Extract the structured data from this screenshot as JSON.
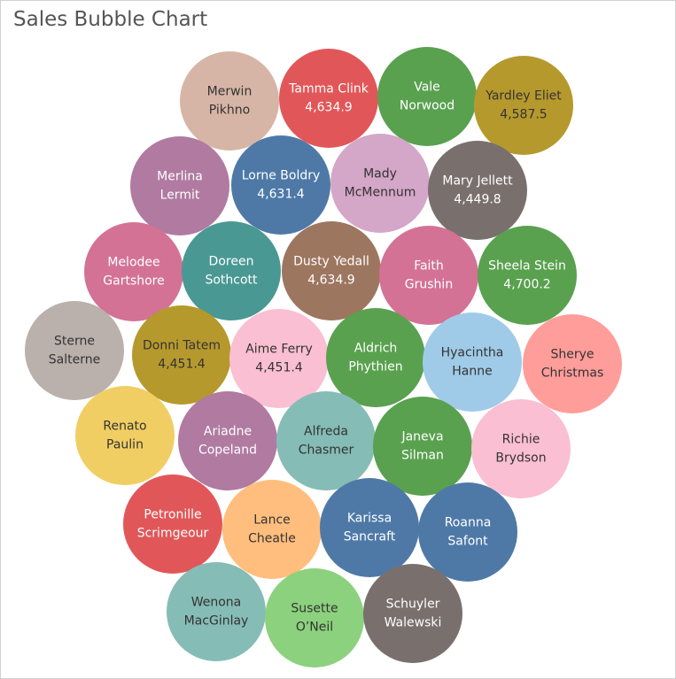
{
  "chart_data": {
    "type": "bubble",
    "title": "Sales Bubble Chart",
    "bubbles": [
      {
        "name": "Merwin Pikhno",
        "value": null,
        "color": "#d7b5a6",
        "dark_text": true
      },
      {
        "name": "Tamma Clink",
        "value": "4,634.9",
        "color": "#e15759",
        "dark_text": false
      },
      {
        "name": "Vale Norwood",
        "value": null,
        "color": "#59a14f",
        "dark_text": false
      },
      {
        "name": "Yardley Eliet",
        "value": "4,587.5",
        "color": "#b6992d",
        "dark_text": true
      },
      {
        "name": "Merlina Lermit",
        "value": null,
        "color": "#b07aa1",
        "dark_text": false
      },
      {
        "name": "Lorne Boldry",
        "value": "4,631.4",
        "color": "#4e79a7",
        "dark_text": false
      },
      {
        "name": "Mady McMennum",
        "value": null,
        "color": "#d4a6c8",
        "dark_text": true
      },
      {
        "name": "Mary Jellett",
        "value": "4,449.8",
        "color": "#79706e",
        "dark_text": false
      },
      {
        "name": "Melodee Gartshore",
        "value": null,
        "color": "#d37295",
        "dark_text": false
      },
      {
        "name": "Doreen Sothcott",
        "value": null,
        "color": "#499894",
        "dark_text": false
      },
      {
        "name": "Dusty Yedall",
        "value": "4,634.9",
        "color": "#9d7660",
        "dark_text": false
      },
      {
        "name": "Faith Grushin",
        "value": null,
        "color": "#d37295",
        "dark_text": false
      },
      {
        "name": "Sheela Stein",
        "value": "4,700.2",
        "color": "#59a14f",
        "dark_text": false
      },
      {
        "name": "Sterne Salterne",
        "value": null,
        "color": "#bab0ac",
        "dark_text": true
      },
      {
        "name": "Donni Tatem",
        "value": "4,451.4",
        "color": "#b6992d",
        "dark_text": true
      },
      {
        "name": "Aime Ferry",
        "value": "4,451.4",
        "color": "#fabfd2",
        "dark_text": true
      },
      {
        "name": "Aldrich Phythien",
        "value": null,
        "color": "#59a14f",
        "dark_text": false
      },
      {
        "name": "Hyacintha Hanne",
        "value": null,
        "color": "#a0cbe8",
        "dark_text": true
      },
      {
        "name": "Sherye Christmas",
        "value": null,
        "color": "#ff9d9a",
        "dark_text": true
      },
      {
        "name": "Renato Paulin",
        "value": null,
        "color": "#f1ce63",
        "dark_text": true
      },
      {
        "name": "Ariadne Copeland",
        "value": null,
        "color": "#b07aa1",
        "dark_text": false
      },
      {
        "name": "Alfreda Chasmer",
        "value": null,
        "color": "#86bcb6",
        "dark_text": true
      },
      {
        "name": "Janeva Silman",
        "value": null,
        "color": "#59a14f",
        "dark_text": false
      },
      {
        "name": "Richie Brydson",
        "value": null,
        "color": "#fabfd2",
        "dark_text": true
      },
      {
        "name": "Petronille Scrimgeour",
        "value": null,
        "color": "#e15759",
        "dark_text": false
      },
      {
        "name": "Lance Cheatle",
        "value": null,
        "color": "#ffbe7d",
        "dark_text": true
      },
      {
        "name": "Karissa Sancraft",
        "value": null,
        "color": "#4e79a7",
        "dark_text": false
      },
      {
        "name": "Roanna Safont",
        "value": null,
        "color": "#4e79a7",
        "dark_text": false
      },
      {
        "name": "Wenona MacGinlay",
        "value": null,
        "color": "#86bcb6",
        "dark_text": true
      },
      {
        "name": "Susette O’Neil",
        "value": null,
        "color": "#8cd17d",
        "dark_text": true
      },
      {
        "name": "Schuyler Walewski",
        "value": null,
        "color": "#79706e",
        "dark_text": false
      }
    ]
  }
}
